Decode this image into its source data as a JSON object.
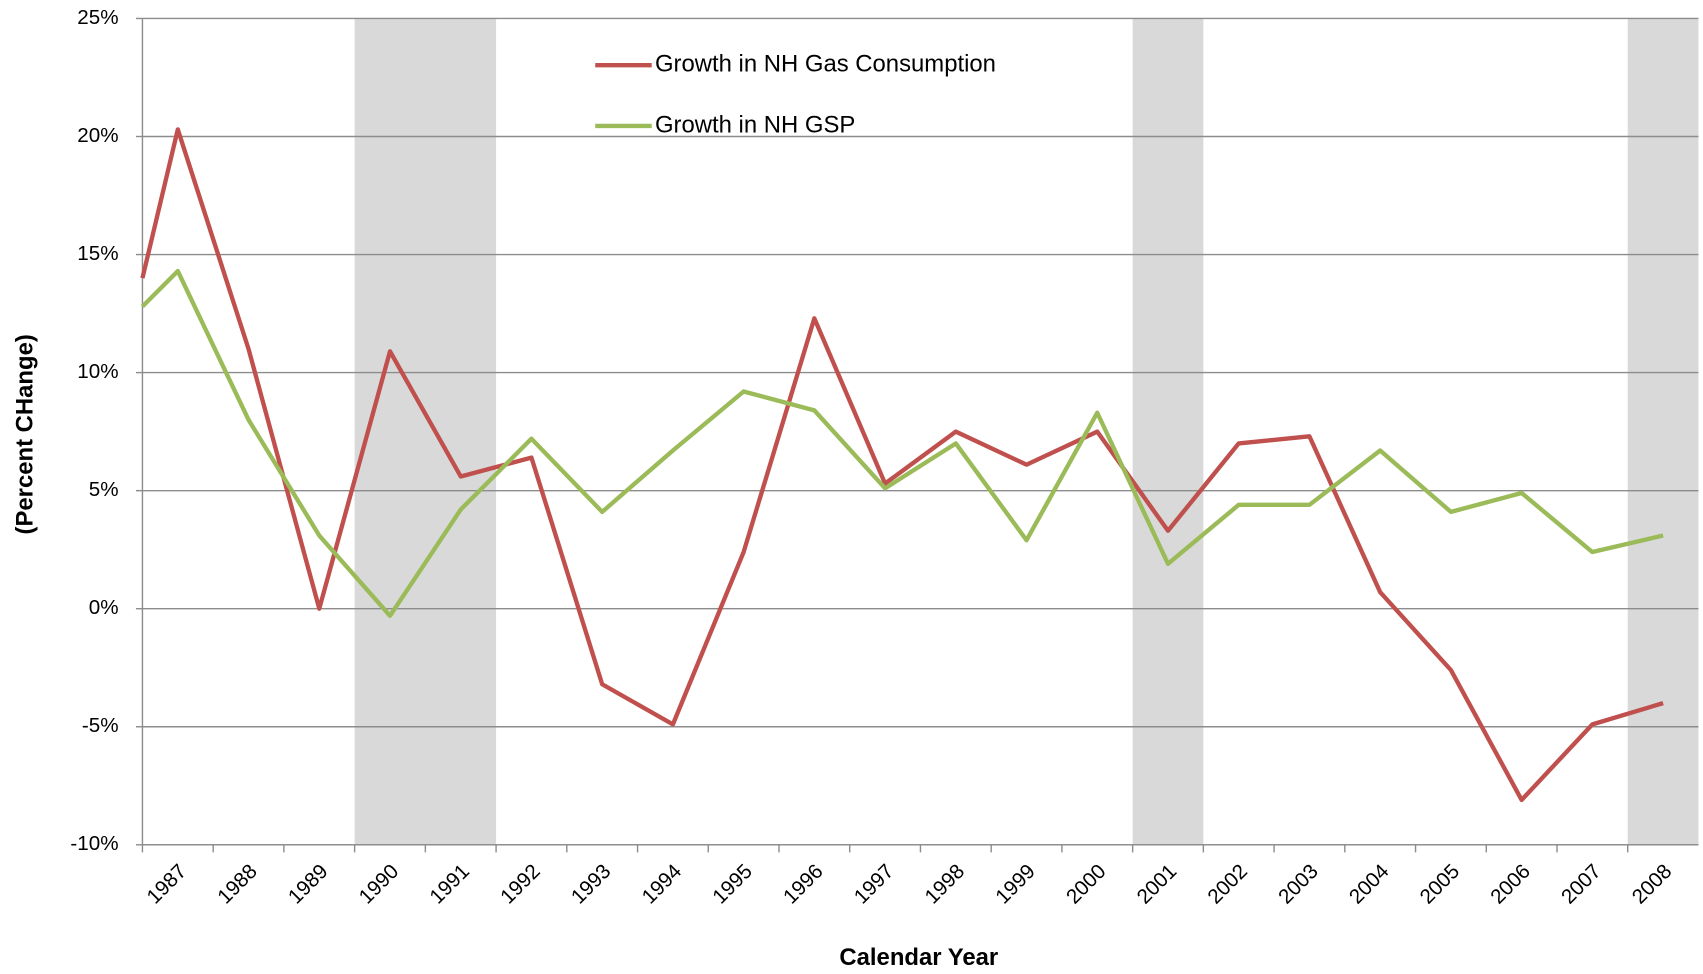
{
  "chart_data": {
    "type": "line",
    "x_label": "Calendar Year",
    "y_label": "(Percent CHange)",
    "x": [
      1987,
      1987.5,
      1988.5,
      1989.5,
      1990.5,
      1991.5,
      1992.5,
      1993.5,
      1994.5,
      1995.5,
      1996.5,
      1997.5,
      1998.5,
      1999.5,
      2000.5,
      2001.5,
      2002.5,
      2003.5,
      2004.5,
      2005.5,
      2006.5,
      2007.5,
      2008.5
    ],
    "series": [
      {
        "name": "Growth in NH Gas Consumption",
        "color": "#c0504d",
        "values": [
          14,
          20.3,
          11,
          0,
          10.9,
          5.6,
          6.4,
          -3.2,
          -4.9,
          2.4,
          12.3,
          5.3,
          7.5,
          6.1,
          7.5,
          3.3,
          7,
          7.3,
          0.7,
          -2.6,
          -8.1,
          -4.9,
          -4
        ]
      },
      {
        "name": "Growth in NH GSP",
        "color": "#9bbb59",
        "values": [
          12.8,
          14.3,
          8,
          3.1,
          -0.3,
          4.2,
          7.2,
          4.1,
          6.7,
          9.2,
          8.4,
          5.1,
          7,
          2.9,
          8.3,
          1.9,
          4.4,
          4.4,
          6.7,
          4.1,
          4.9,
          2.4,
          3.1
        ]
      }
    ],
    "shaded_periods": [
      [
        1990,
        1992
      ],
      [
        2001,
        2002
      ],
      [
        2008,
        2009
      ]
    ],
    "shade_color": "#d9d9d9",
    "xlim": [
      1987,
      2009
    ],
    "xticks": [
      1987,
      1988,
      1989,
      1990,
      1991,
      1992,
      1993,
      1994,
      1995,
      1996,
      1997,
      1998,
      1999,
      2000,
      2001,
      2002,
      2003,
      2004,
      2005,
      2006,
      2007,
      2008
    ],
    "ylim": [
      -10,
      25
    ],
    "yticks": [
      {
        "value": -10,
        "label": "-10%"
      },
      {
        "value": -5,
        "label": "-5%"
      },
      {
        "value": 0,
        "label": "0%"
      },
      {
        "value": 5,
        "label": "5%"
      },
      {
        "value": 10,
        "label": "10%"
      },
      {
        "value": 15,
        "label": "15%"
      },
      {
        "value": 20,
        "label": "20%"
      },
      {
        "value": 25,
        "label": "25%"
      }
    ],
    "grid": true,
    "legend": "top"
  }
}
